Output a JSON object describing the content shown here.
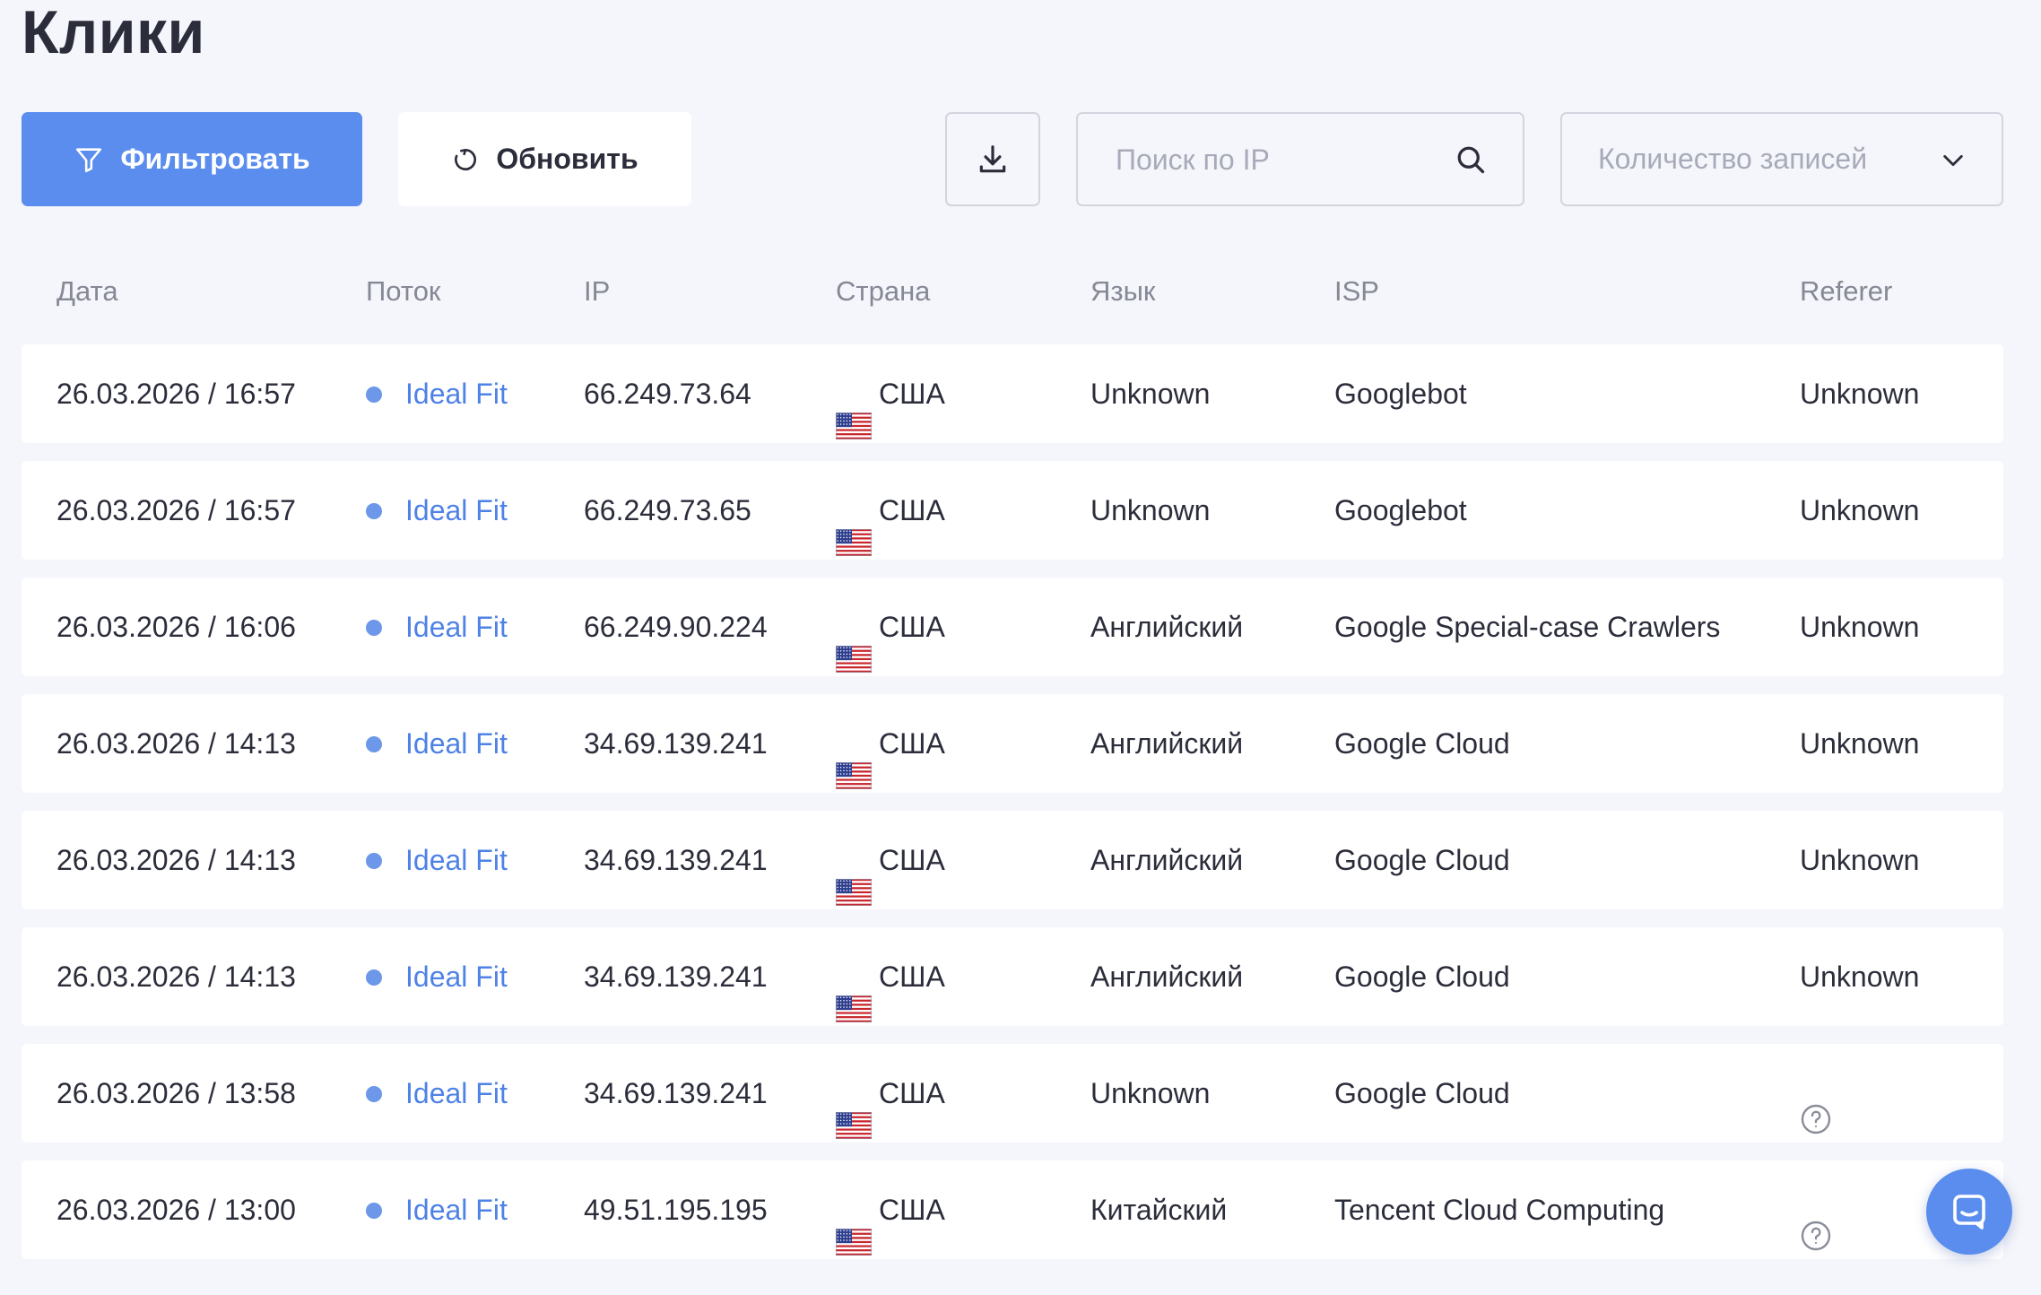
{
  "page": {
    "title": "Клики"
  },
  "toolbar": {
    "filter_label": "Фильтровать",
    "refresh_label": "Обновить",
    "search_placeholder": "Поиск по IP",
    "search_value": "",
    "records_select_placeholder": "Количество записей"
  },
  "table": {
    "columns": {
      "date": "Дата",
      "flow": "Поток",
      "ip": "IP",
      "country": "Страна",
      "language": "Язык",
      "isp": "ISP",
      "referer": "Referer"
    },
    "rows": [
      {
        "date": "26.03.2026 / 16:57",
        "flow": "Ideal Fit",
        "ip": "66.249.73.64",
        "country": "США",
        "language": "Unknown",
        "isp": "Googlebot",
        "referer": "Unknown"
      },
      {
        "date": "26.03.2026 / 16:57",
        "flow": "Ideal Fit",
        "ip": "66.249.73.65",
        "country": "США",
        "language": "Unknown",
        "isp": "Googlebot",
        "referer": "Unknown"
      },
      {
        "date": "26.03.2026 / 16:06",
        "flow": "Ideal Fit",
        "ip": "66.249.90.224",
        "country": "США",
        "language": "Английский",
        "isp": "Google Special-case Crawlers",
        "referer": "Unknown"
      },
      {
        "date": "26.03.2026 / 14:13",
        "flow": "Ideal Fit",
        "ip": "34.69.139.241",
        "country": "США",
        "language": "Английский",
        "isp": "Google Cloud",
        "referer": "Unknown"
      },
      {
        "date": "26.03.2026 / 14:13",
        "flow": "Ideal Fit",
        "ip": "34.69.139.241",
        "country": "США",
        "language": "Английский",
        "isp": "Google Cloud",
        "referer": "Unknown"
      },
      {
        "date": "26.03.2026 / 14:13",
        "flow": "Ideal Fit",
        "ip": "34.69.139.241",
        "country": "США",
        "language": "Английский",
        "isp": "Google Cloud",
        "referer": "Unknown"
      },
      {
        "date": "26.03.2026 / 13:58",
        "flow": "Ideal Fit",
        "ip": "34.69.139.241",
        "country": "США",
        "language": "Unknown",
        "isp": "Google Cloud",
        "referer": null,
        "referer_icon": "help-circle-icon"
      },
      {
        "date": "26.03.2026 / 13:00",
        "flow": "Ideal Fit",
        "ip": "49.51.195.195",
        "country": "США",
        "language": "Китайский",
        "isp": "Tencent Cloud Computing",
        "referer": null,
        "referer_icon": "help-circle-icon"
      }
    ]
  },
  "icons": {
    "filter": "filter-icon",
    "refresh": "refresh-icon",
    "download": "download-icon",
    "search": "search-icon",
    "chevron": "chevron-down-icon",
    "flag": "us-flag-icon",
    "help": "help-circle-icon",
    "chat": "chat-icon"
  },
  "colors": {
    "accent": "#5b8dee",
    "link": "#4f82e6",
    "background": "#f5f6fb",
    "row_background": "#ffffff",
    "text": "#2b2d3b",
    "muted": "#858895"
  }
}
